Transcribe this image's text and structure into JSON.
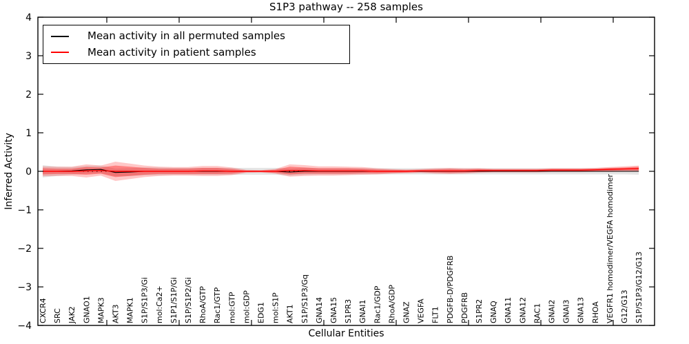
{
  "chart_data": {
    "type": "line",
    "title": "S1P3 pathway -- 258 samples",
    "xlabel": "Cellular Entities",
    "ylabel": "Inferred Activity",
    "ylim": [
      -4,
      4
    ],
    "yticks": [
      4,
      3,
      2,
      1,
      0,
      -1,
      -2,
      -3,
      -4
    ],
    "grid": false,
    "legend_position": "upper left",
    "zero_line": true,
    "categories": [
      "CXCR4",
      "SRC",
      "JAK2",
      "GNAO1",
      "MAPK3",
      "AKT3",
      "MAPK1",
      "S1P/S1P3/Gi",
      "mol:Ca2+",
      "S1P1/S1P/Gi",
      "S1P/S1P2/Gi",
      "RhoA/GTP",
      "Rac1/GTP",
      "mol:GTP",
      "mol:GDP",
      "EDG1",
      "mol:S1P",
      "AKT1",
      "S1P/S1P3/Gq",
      "GNA14",
      "GNA15",
      "S1PR3",
      "GNAI1",
      "Rac1/GDP",
      "RhoA/GDP",
      "GNAZ",
      "VEGFA",
      "FLT1",
      "PDGFB-D/PDGFRB",
      "PDGFRB",
      "S1PR2",
      "GNAQ",
      "GNA11",
      "GNA12",
      "RAC1",
      "GNAI2",
      "GNAI3",
      "GNA13",
      "RHOA",
      "VEGFR1 homodimer/VEGFA homodimer",
      "G12/G13",
      "S1P/S1P3/G12/G13"
    ],
    "series": [
      {
        "name": "Mean activity in all permuted samples",
        "color": "#000000",
        "values": [
          0,
          0,
          0.01,
          0.04,
          0.05,
          -0.03,
          -0.02,
          0,
          0,
          0,
          0,
          0,
          0,
          0,
          0,
          0,
          0,
          -0.02,
          0,
          0,
          0,
          0,
          0,
          0,
          0,
          0,
          0,
          0,
          0,
          0,
          0,
          0,
          0,
          0,
          0,
          0,
          0,
          0,
          0,
          0,
          0,
          0
        ]
      },
      {
        "name": "Mean activity in patient samples",
        "color": "#ff0000",
        "values": [
          0,
          0,
          0,
          0.01,
          0.02,
          0,
          0,
          0,
          0,
          0,
          0,
          0.01,
          0.01,
          0,
          0,
          0,
          0,
          0.02,
          0.02,
          0.01,
          0.01,
          0.01,
          0.01,
          0,
          0,
          0,
          0.01,
          0.01,
          0.01,
          0.01,
          0.02,
          0.02,
          0.02,
          0.02,
          0.02,
          0.03,
          0.03,
          0.03,
          0.04,
          0.05,
          0.06,
          0.07
        ]
      }
    ],
    "bands": [
      {
        "name": "permuted-band",
        "center": "permuted",
        "color": "rgba(0,0,0,0.10)",
        "half_widths": [
          0.16,
          0.12,
          0.1,
          0.1,
          0.1,
          0.1,
          0.1,
          0.1,
          0.1,
          0.09,
          0.09,
          0.09,
          0.09,
          0.09,
          0.09,
          0.09,
          0.09,
          0.09,
          0.09,
          0.08,
          0.08,
          0.08,
          0.08,
          0.08,
          0.08,
          0.08,
          0.08,
          0.08,
          0.08,
          0.08,
          0.08,
          0.08,
          0.08,
          0.08,
          0.08,
          0.08,
          0.08,
          0.08,
          0.08,
          0.08,
          0.08,
          0.09
        ]
      },
      {
        "name": "patient-band-outer",
        "center": "patient",
        "color": "rgba(255,0,0,0.22)",
        "half_widths": [
          0.13,
          0.12,
          0.12,
          0.17,
          0.13,
          0.25,
          0.2,
          0.15,
          0.12,
          0.11,
          0.11,
          0.13,
          0.13,
          0.1,
          0.04,
          0.03,
          0.06,
          0.16,
          0.14,
          0.12,
          0.12,
          0.11,
          0.1,
          0.08,
          0.06,
          0.05,
          0.05,
          0.07,
          0.08,
          0.07,
          0.06,
          0.05,
          0.05,
          0.05,
          0.05,
          0.05,
          0.05,
          0.05,
          0.05,
          0.06,
          0.07,
          0.08
        ]
      },
      {
        "name": "patient-band-inner",
        "center": "patient",
        "color": "rgba(255,0,0,0.35)",
        "half_widths": [
          0.08,
          0.07,
          0.07,
          0.1,
          0.08,
          0.15,
          0.12,
          0.09,
          0.07,
          0.07,
          0.07,
          0.08,
          0.08,
          0.06,
          0.02,
          0.02,
          0.04,
          0.1,
          0.08,
          0.07,
          0.07,
          0.07,
          0.06,
          0.05,
          0.04,
          0.03,
          0.03,
          0.04,
          0.05,
          0.04,
          0.04,
          0.03,
          0.03,
          0.03,
          0.03,
          0.03,
          0.03,
          0.03,
          0.03,
          0.04,
          0.04,
          0.05
        ]
      }
    ]
  }
}
